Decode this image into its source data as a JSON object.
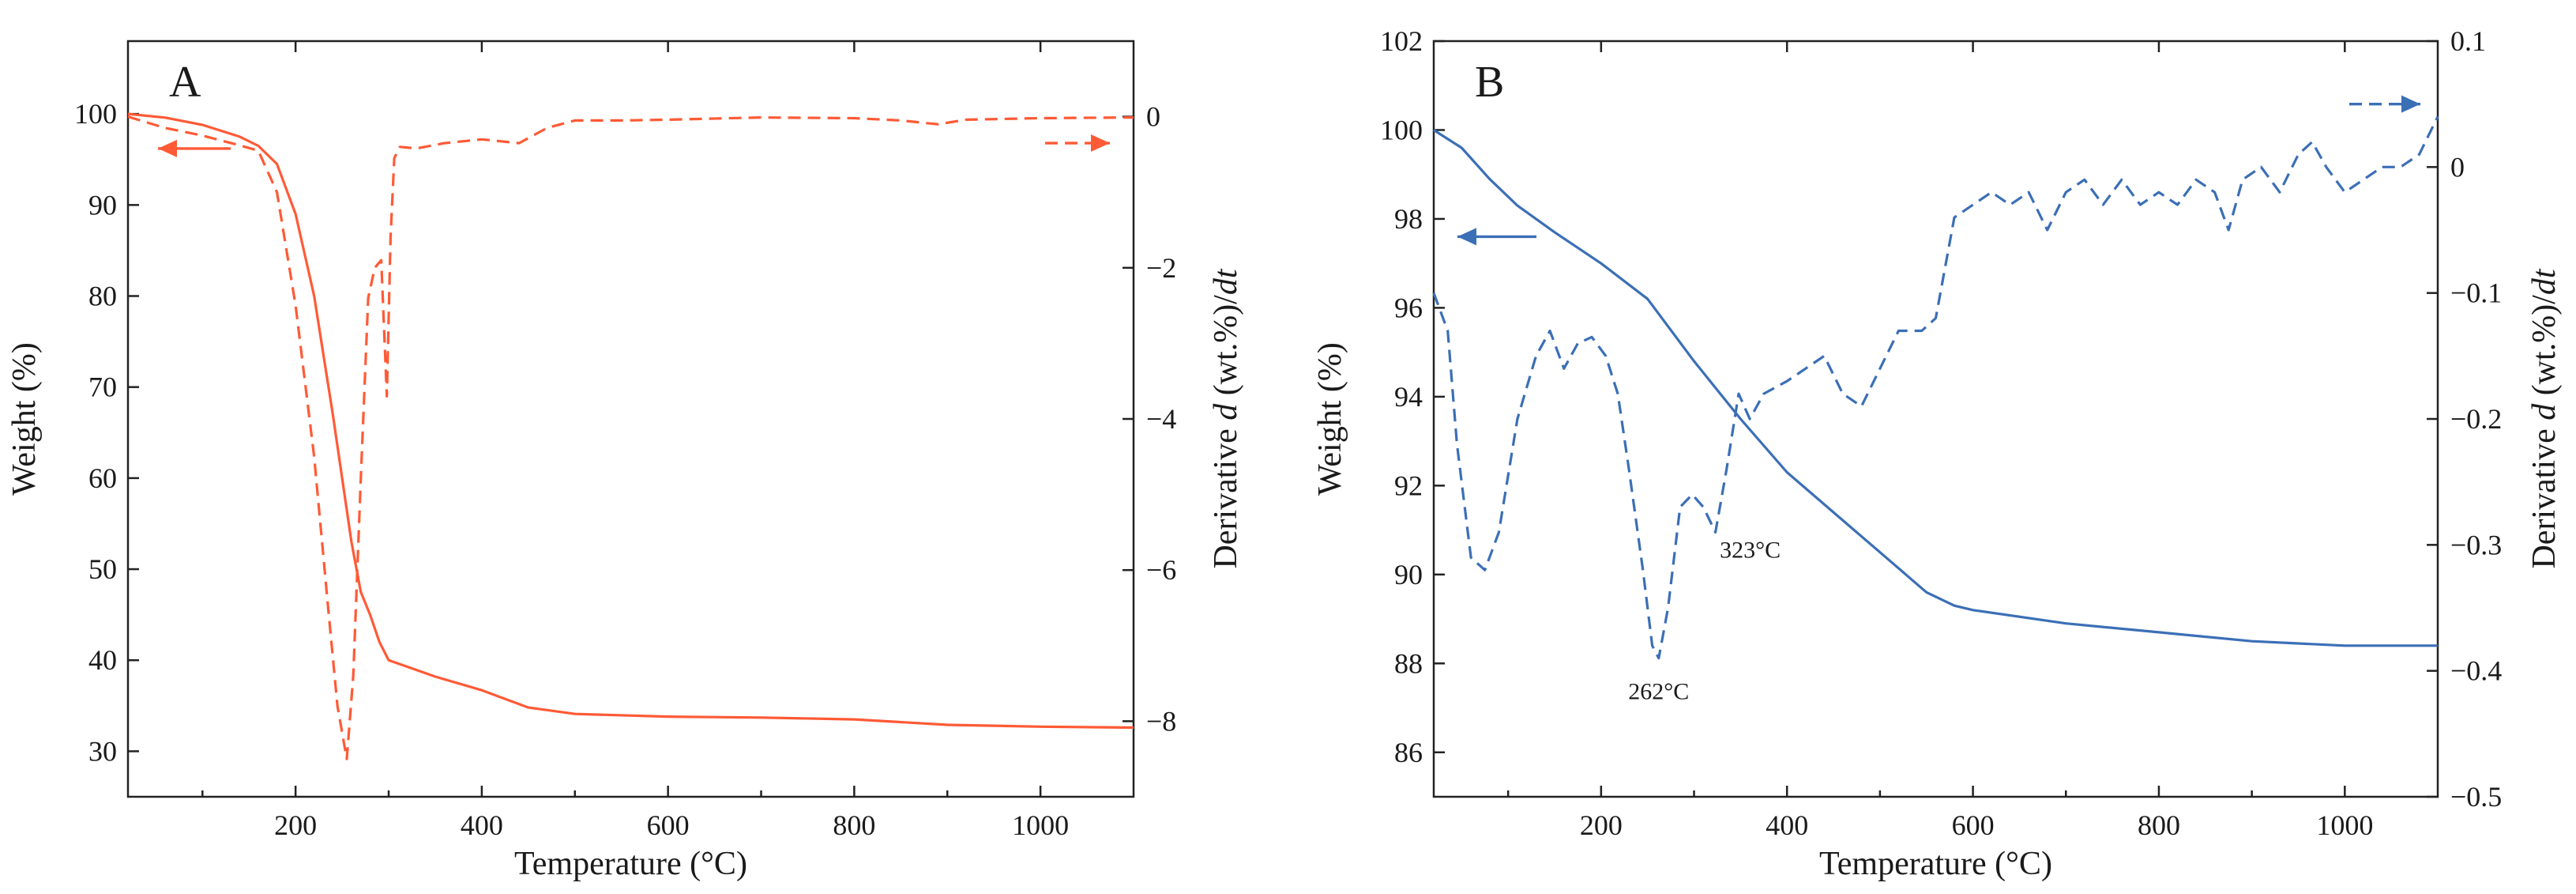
{
  "chart_data": [
    {
      "type": "line",
      "panel_label": "A",
      "color": "#ff5a36",
      "xlabel": "Temperature (°C)",
      "ylabel_left": "Weight (%)",
      "ylabel_right_parts": [
        "Derivative ",
        "d",
        " (wt.%)/",
        "dt"
      ],
      "xlim": [
        20,
        1100
      ],
      "ylim_left": [
        25,
        108
      ],
      "ylim_right": [
        -9,
        1.0
      ],
      "x_ticks": [
        200,
        400,
        600,
        800,
        1000
      ],
      "x_ticks_minor": [
        100,
        300,
        500,
        700,
        900
      ],
      "y_ticks_left": [
        30,
        40,
        50,
        60,
        70,
        80,
        90,
        100
      ],
      "y_ticks_right": [
        0,
        -2,
        -4,
        -6,
        -8
      ],
      "y_tick_labels_right": [
        "0",
        "−2",
        "−4",
        "−6",
        "−8"
      ],
      "series": [
        {
          "name": "Weight",
          "axis": "left",
          "style": "solid",
          "points": [
            [
              20,
              100
            ],
            [
              60,
              99.6
            ],
            [
              100,
              98.8
            ],
            [
              140,
              97.5
            ],
            [
              160,
              96.5
            ],
            [
              180,
              94.5
            ],
            [
              200,
              89
            ],
            [
              220,
              80
            ],
            [
              240,
              67
            ],
            [
              250,
              60
            ],
            [
              260,
              53
            ],
            [
              270,
              47.5
            ],
            [
              280,
              45
            ],
            [
              290,
              42
            ],
            [
              300,
              40
            ],
            [
              350,
              38.2
            ],
            [
              400,
              36.7
            ],
            [
              450,
              34.8
            ],
            [
              500,
              34.1
            ],
            [
              600,
              33.8
            ],
            [
              700,
              33.7
            ],
            [
              800,
              33.5
            ],
            [
              900,
              32.9
            ],
            [
              1000,
              32.7
            ],
            [
              1100,
              32.6
            ]
          ]
        },
        {
          "name": "Derivative",
          "axis": "right",
          "style": "dashed",
          "points": [
            [
              20,
              0.0
            ],
            [
              60,
              -0.15
            ],
            [
              100,
              -0.25
            ],
            [
              140,
              -0.38
            ],
            [
              160,
              -0.45
            ],
            [
              180,
              -1.0
            ],
            [
              200,
              -2.5
            ],
            [
              220,
              -4.5
            ],
            [
              235,
              -6.5
            ],
            [
              245,
              -7.8
            ],
            [
              255,
              -8.5
            ],
            [
              262,
              -7.4
            ],
            [
              270,
              -4.8
            ],
            [
              278,
              -2.4
            ],
            [
              285,
              -2.0
            ],
            [
              292,
              -1.9
            ],
            [
              298,
              -3.7
            ],
            [
              302,
              -1.6
            ],
            [
              306,
              -0.55
            ],
            [
              312,
              -0.4
            ],
            [
              330,
              -0.42
            ],
            [
              360,
              -0.35
            ],
            [
              400,
              -0.3
            ],
            [
              440,
              -0.35
            ],
            [
              470,
              -0.15
            ],
            [
              500,
              -0.05
            ],
            [
              550,
              -0.05
            ],
            [
              600,
              -0.04
            ],
            [
              700,
              -0.01
            ],
            [
              800,
              -0.02
            ],
            [
              850,
              -0.05
            ],
            [
              890,
              -0.1
            ],
            [
              920,
              -0.04
            ],
            [
              1000,
              -0.02
            ],
            [
              1100,
              -0.01
            ]
          ]
        }
      ],
      "arrows": [
        {
          "direction": "left",
          "axis": "left"
        },
        {
          "direction": "right",
          "axis": "right"
        }
      ]
    },
    {
      "type": "line",
      "panel_label": "B",
      "color": "#3b6fb6",
      "xlabel": "Temperature (°C)",
      "ylabel_left": "Weight (%)",
      "ylabel_right_parts": [
        "Derivative ",
        "d",
        " (wt.%)/",
        "dt"
      ],
      "xlim": [
        20,
        1100
      ],
      "ylim_left": [
        85,
        102
      ],
      "ylim_right": [
        -0.5,
        0.1
      ],
      "x_ticks": [
        200,
        400,
        600,
        800,
        1000
      ],
      "x_ticks_minor": [
        100,
        300,
        500,
        700,
        900
      ],
      "y_ticks_left": [
        86,
        88,
        90,
        92,
        94,
        96,
        98,
        100,
        102
      ],
      "y_ticks_right": [
        0.1,
        0,
        -0.1,
        -0.2,
        -0.3,
        -0.4,
        -0.5
      ],
      "y_tick_labels_right": [
        "0.1",
        "0",
        "−0.1",
        "−0.2",
        "−0.3",
        "−0.4",
        "−0.5"
      ],
      "series": [
        {
          "name": "Weight",
          "axis": "left",
          "style": "solid",
          "points": [
            [
              20,
              100
            ],
            [
              50,
              99.6
            ],
            [
              80,
              98.9
            ],
            [
              110,
              98.3
            ],
            [
              150,
              97.7
            ],
            [
              200,
              97
            ],
            [
              250,
              96.2
            ],
            [
              300,
              94.8
            ],
            [
              350,
              93.5
            ],
            [
              400,
              92.3
            ],
            [
              450,
              91.4
            ],
            [
              500,
              90.5
            ],
            [
              550,
              89.6
            ],
            [
              580,
              89.3
            ],
            [
              600,
              89.2
            ],
            [
              700,
              88.9
            ],
            [
              800,
              88.7
            ],
            [
              900,
              88.5
            ],
            [
              1000,
              88.4
            ],
            [
              1100,
              88.4
            ]
          ]
        },
        {
          "name": "Derivative",
          "axis": "right",
          "style": "dashed",
          "points": [
            [
              20,
              -0.1
            ],
            [
              35,
              -0.13
            ],
            [
              45,
              -0.22
            ],
            [
              60,
              -0.31
            ],
            [
              75,
              -0.32
            ],
            [
              90,
              -0.29
            ],
            [
              110,
              -0.2
            ],
            [
              130,
              -0.15
            ],
            [
              145,
              -0.13
            ],
            [
              160,
              -0.16
            ],
            [
              175,
              -0.14
            ],
            [
              190,
              -0.135
            ],
            [
              205,
              -0.15
            ],
            [
              218,
              -0.18
            ],
            [
              230,
              -0.24
            ],
            [
              245,
              -0.32
            ],
            [
              255,
              -0.38
            ],
            [
              262,
              -0.39
            ],
            [
              272,
              -0.35
            ],
            [
              285,
              -0.27
            ],
            [
              298,
              -0.26
            ],
            [
              310,
              -0.27
            ],
            [
              323,
              -0.29
            ],
            [
              335,
              -0.24
            ],
            [
              348,
              -0.18
            ],
            [
              360,
              -0.2
            ],
            [
              375,
              -0.18
            ],
            [
              400,
              -0.17
            ],
            [
              420,
              -0.16
            ],
            [
              440,
              -0.15
            ],
            [
              460,
              -0.18
            ],
            [
              480,
              -0.19
            ],
            [
              500,
              -0.16
            ],
            [
              520,
              -0.13
            ],
            [
              545,
              -0.13
            ],
            [
              560,
              -0.12
            ],
            [
              580,
              -0.04
            ],
            [
              600,
              -0.03
            ],
            [
              620,
              -0.02
            ],
            [
              640,
              -0.03
            ],
            [
              660,
              -0.02
            ],
            [
              680,
              -0.05
            ],
            [
              700,
              -0.02
            ],
            [
              720,
              -0.01
            ],
            [
              740,
              -0.03
            ],
            [
              760,
              -0.01
            ],
            [
              780,
              -0.03
            ],
            [
              800,
              -0.02
            ],
            [
              820,
              -0.03
            ],
            [
              840,
              -0.01
            ],
            [
              860,
              -0.02
            ],
            [
              875,
              -0.05
            ],
            [
              890,
              -0.01
            ],
            [
              910,
              0.0
            ],
            [
              930,
              -0.02
            ],
            [
              950,
              0.01
            ],
            [
              965,
              0.02
            ],
            [
              980,
              0.0
            ],
            [
              1000,
              -0.02
            ],
            [
              1020,
              -0.01
            ],
            [
              1040,
              0.0
            ],
            [
              1060,
              0.0
            ],
            [
              1080,
              0.01
            ],
            [
              1100,
              0.04
            ]
          ]
        }
      ],
      "annotations": [
        {
          "text": "262°C",
          "x": 262,
          "y": -0.39,
          "axis": "right"
        },
        {
          "text": "323°C",
          "x": 323,
          "y": -0.29,
          "axis": "right"
        }
      ],
      "arrows": [
        {
          "direction": "left",
          "axis": "left"
        },
        {
          "direction": "right",
          "axis": "right"
        }
      ]
    }
  ]
}
